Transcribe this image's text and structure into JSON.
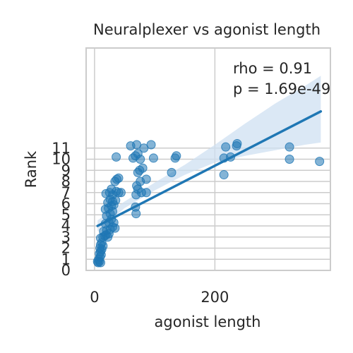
{
  "chart_data": {
    "type": "scatter",
    "title": "Neuralplexer vs agonist length",
    "xlabel": "agonist length",
    "ylabel": "Rank",
    "xlim": [
      -14,
      392
    ],
    "ylim": [
      0,
      20
    ],
    "x_ticks": [
      0,
      200
    ],
    "y_ticks": [
      0,
      1,
      2,
      3,
      4,
      5,
      6,
      7,
      8,
      9,
      10,
      11
    ],
    "grid": true,
    "annotation": [
      "rho = 0.91",
      "p = 1.69e-49"
    ],
    "point_color": "#1f77b4",
    "band_color": "#cfe0f1",
    "regression": {
      "x0": 5,
      "y0": 4.0,
      "x1": 376,
      "y1": 14.3
    },
    "band": {
      "x": [
        5,
        50,
        100,
        150,
        200,
        250,
        300,
        350,
        376
      ],
      "lower": [
        3.5,
        5.6,
        7.2,
        8.6,
        9.7,
        10.3,
        10.8,
        11.3,
        11.5
      ],
      "upper": [
        4.5,
        6.2,
        7.9,
        9.5,
        11.3,
        13.2,
        15.0,
        16.6,
        17.5
      ]
    },
    "points": [
      {
        "x": 5,
        "y": 0.8
      },
      {
        "x": 6,
        "y": 0.7
      },
      {
        "x": 8,
        "y": 0.8
      },
      {
        "x": 10,
        "y": 0.7
      },
      {
        "x": 7,
        "y": 1.0
      },
      {
        "x": 9,
        "y": 1.2
      },
      {
        "x": 8,
        "y": 1.5
      },
      {
        "x": 11,
        "y": 1.4
      },
      {
        "x": 10,
        "y": 1.7
      },
      {
        "x": 12,
        "y": 1.9
      },
      {
        "x": 9,
        "y": 2.0
      },
      {
        "x": 10,
        "y": 2.3
      },
      {
        "x": 14,
        "y": 2.2
      },
      {
        "x": 12,
        "y": 2.5
      },
      {
        "x": 10,
        "y": 2.9
      },
      {
        "x": 14,
        "y": 3.0
      },
      {
        "x": 17,
        "y": 3.1
      },
      {
        "x": 19,
        "y": 3.2
      },
      {
        "x": 22,
        "y": 3.0
      },
      {
        "x": 24,
        "y": 3.3
      },
      {
        "x": 15,
        "y": 3.5
      },
      {
        "x": 20,
        "y": 3.6
      },
      {
        "x": 26,
        "y": 3.7
      },
      {
        "x": 30,
        "y": 3.9
      },
      {
        "x": 34,
        "y": 3.8
      },
      {
        "x": 18,
        "y": 4.2
      },
      {
        "x": 24,
        "y": 4.3
      },
      {
        "x": 28,
        "y": 4.6
      },
      {
        "x": 32,
        "y": 4.3
      },
      {
        "x": 20,
        "y": 4.9
      },
      {
        "x": 26,
        "y": 5.1
      },
      {
        "x": 30,
        "y": 5.3
      },
      {
        "x": 18,
        "y": 5.5
      },
      {
        "x": 23,
        "y": 5.6
      },
      {
        "x": 28,
        "y": 5.8
      },
      {
        "x": 32,
        "y": 5.9
      },
      {
        "x": 22,
        "y": 6.1
      },
      {
        "x": 26,
        "y": 6.4
      },
      {
        "x": 30,
        "y": 6.2
      },
      {
        "x": 35,
        "y": 6.3
      },
      {
        "x": 19,
        "y": 6.9
      },
      {
        "x": 25,
        "y": 7.0
      },
      {
        "x": 30,
        "y": 6.8
      },
      {
        "x": 36,
        "y": 7.1
      },
      {
        "x": 40,
        "y": 7.0
      },
      {
        "x": 28,
        "y": 7.3
      },
      {
        "x": 34,
        "y": 8.0
      },
      {
        "x": 37,
        "y": 8.2
      },
      {
        "x": 40,
        "y": 8.3
      },
      {
        "x": 44,
        "y": 7.0
      },
      {
        "x": 69,
        "y": 5.1
      },
      {
        "x": 68,
        "y": 5.7
      },
      {
        "x": 69,
        "y": 6.8
      },
      {
        "x": 72,
        "y": 7.3
      },
      {
        "x": 78,
        "y": 7.0
      },
      {
        "x": 86,
        "y": 7.0
      },
      {
        "x": 70,
        "y": 7.6
      },
      {
        "x": 76,
        "y": 8.0
      },
      {
        "x": 86,
        "y": 8.2
      },
      {
        "x": 75,
        "y": 9.0
      },
      {
        "x": 80,
        "y": 9.2
      },
      {
        "x": 72,
        "y": 8.8
      },
      {
        "x": 64,
        "y": 10.1
      },
      {
        "x": 68,
        "y": 10.3
      },
      {
        "x": 72,
        "y": 10.5
      },
      {
        "x": 76,
        "y": 10.0
      },
      {
        "x": 98,
        "y": 10.1
      },
      {
        "x": 134,
        "y": 10.1
      },
      {
        "x": 136,
        "y": 10.3
      },
      {
        "x": 60,
        "y": 11.2
      },
      {
        "x": 70,
        "y": 11.3
      },
      {
        "x": 82,
        "y": 11.0
      },
      {
        "x": 94,
        "y": 11.3
      },
      {
        "x": 128,
        "y": 8.8
      },
      {
        "x": 36,
        "y": 10.2
      },
      {
        "x": 215,
        "y": 8.6
      },
      {
        "x": 215,
        "y": 10.1
      },
      {
        "x": 226,
        "y": 10.2
      },
      {
        "x": 218,
        "y": 11.1
      },
      {
        "x": 236,
        "y": 11.2
      },
      {
        "x": 237,
        "y": 11.4
      },
      {
        "x": 324,
        "y": 11.1
      },
      {
        "x": 324,
        "y": 10.0
      },
      {
        "x": 374,
        "y": 9.8
      }
    ]
  }
}
